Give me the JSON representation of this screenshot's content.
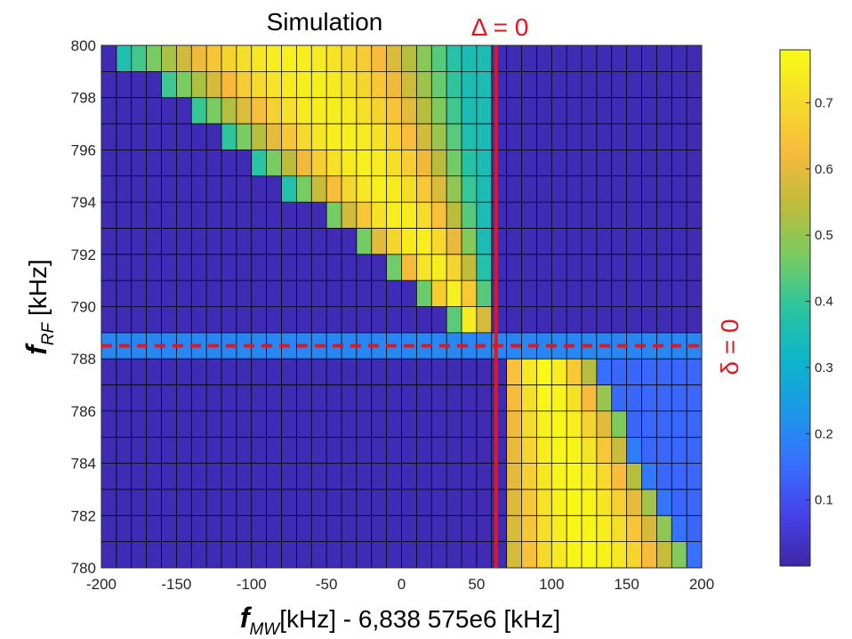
{
  "chart_data": {
    "type": "heatmap",
    "title": "Simulation",
    "xlabel": {
      "symbol": "f",
      "subscript": "MW",
      "text": "[kHz] - 6,838 575e6 [kHz]"
    },
    "ylabel": {
      "symbol": "f",
      "subscript": "RF",
      "text": " [kHz]"
    },
    "xlim": [
      -200,
      200
    ],
    "ylim": [
      780,
      800
    ],
    "x_ticks": [
      "-200",
      "-150",
      "-100",
      "-50",
      "0",
      "50",
      "100",
      "150",
      "200"
    ],
    "y_ticks": [
      "780",
      "782",
      "784",
      "786",
      "788",
      "790",
      "792",
      "794",
      "796",
      "798",
      "800"
    ],
    "x_bins": 40,
    "y_bins": 20,
    "colorbar": {
      "min": 0,
      "max": 0.78,
      "ticks": [
        "0.1",
        "0.2",
        "0.3",
        "0.4",
        "0.5",
        "0.6",
        "0.7"
      ]
    },
    "colormap": "parula",
    "annotations": {
      "vertical_line": {
        "label": "Δ = 0",
        "x": 63,
        "color": "#e8141b"
      },
      "horizontal_line": {
        "label": "δ = 0",
        "y": 788.5,
        "color": "#e8141b"
      }
    },
    "grid": true,
    "values_description": "Cell values 0–0.78 forming two avoided-crossing branches around Δ=0 and δ=0"
  }
}
